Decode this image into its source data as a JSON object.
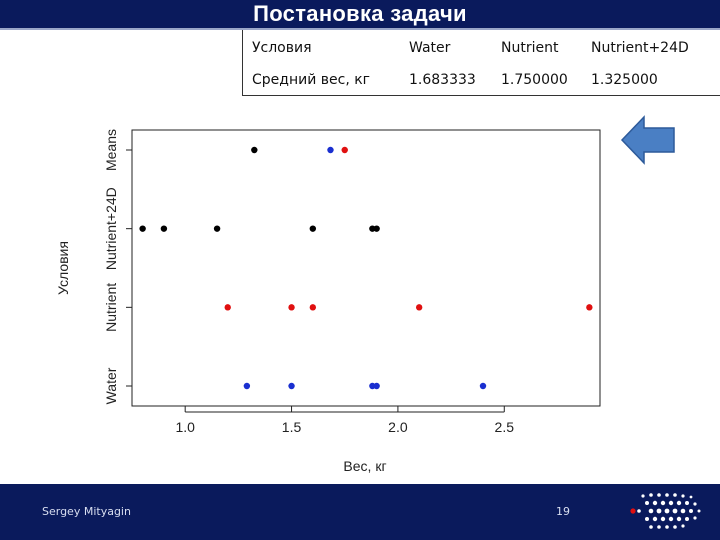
{
  "slide": {
    "title": "Постановка задачи",
    "author": "Sergey Mityagin",
    "page_number": "19"
  },
  "stats_table": {
    "header": [
      "Условия",
      "Water",
      "Nutrient",
      "Nutrient+24D"
    ],
    "row": [
      "Средний вес, кг",
      "1.683333",
      "1.750000",
      "1.325000"
    ]
  },
  "nav_arrow": {
    "icon": "left-arrow-icon",
    "color": "#4a7fc4"
  },
  "chart_data": {
    "type": "scatter",
    "xlabel": "Вес, кг",
    "ylabel": "Условия",
    "xlim": [
      0.75,
      2.95
    ],
    "x_ticks": [
      "1.0",
      "1.5",
      "2.0",
      "2.5"
    ],
    "categories": [
      "Water",
      "Nutrient",
      "Nutrient+24D",
      "Means"
    ],
    "series": [
      {
        "category": "Water",
        "color": "#1a2fd0",
        "x": [
          1.29,
          1.5,
          1.88,
          1.9,
          2.4
        ]
      },
      {
        "category": "Nutrient",
        "color": "#e01010",
        "x": [
          1.2,
          1.5,
          1.6,
          2.1,
          2.9
        ]
      },
      {
        "category": "Nutrient+24D",
        "color": "#000000",
        "x": [
          0.8,
          0.9,
          1.15,
          1.6,
          1.88,
          1.9
        ]
      },
      {
        "category": "Means",
        "points": [
          {
            "x": 1.325,
            "color": "#000000"
          },
          {
            "x": 1.683,
            "color": "#1a2fd0"
          },
          {
            "x": 1.75,
            "color": "#e01010"
          }
        ]
      }
    ]
  }
}
